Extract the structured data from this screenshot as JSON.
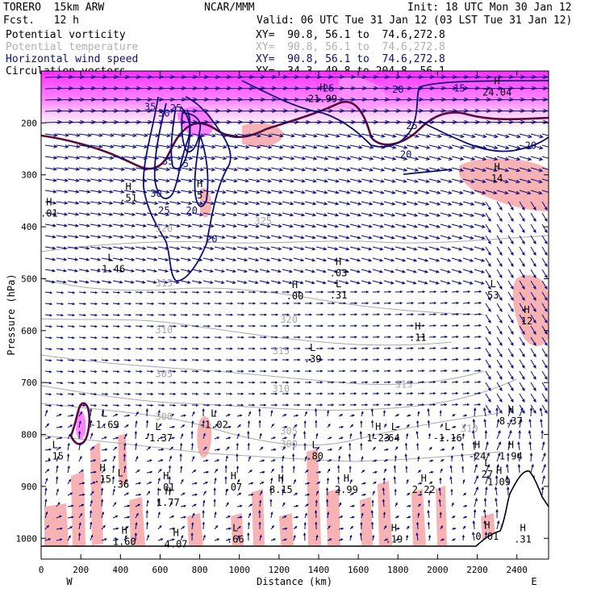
{
  "header": {
    "model": "TORERO  15km ARW",
    "center": "NCAR/MMM",
    "init": "Init: 18 UTC Mon 30 Jan 12",
    "fcst": "Fcst.   12 h",
    "valid": "Valid: 06 UTC Tue 31 Jan 12 (03 LST Tue 31 Jan 12)"
  },
  "legend": [
    {
      "label": "Potential vorticity",
      "xy": "XY=  90.8, 56.1 to  74.6,272.8",
      "color": "#000000"
    },
    {
      "label": "Potential temperature",
      "xy": "XY=  90.8, 56.1 to  74.6,272.8",
      "color": "#b0b0b0"
    },
    {
      "label": "Horizontal wind speed",
      "xy": "XY=  90.8, 56.1 to  74.6,272.8",
      "color": "#101070"
    },
    {
      "label": "Circulation vectors",
      "xy": "XY=  34.3, 49.8 to 204.8, 56.1",
      "color": "#000000"
    }
  ],
  "chart_data": {
    "type": "cross-section",
    "xlabel": "Distance (km)",
    "ylabel": "Pressure (hPa)",
    "x_ticks": [
      0,
      200,
      400,
      600,
      800,
      1000,
      1200,
      1400,
      1600,
      1800,
      2000,
      2200,
      2400
    ],
    "y_ticks": [
      200,
      300,
      400,
      500,
      600,
      700,
      800,
      900,
      1000
    ],
    "xlim": [
      0,
      2560
    ],
    "ylim": [
      1040,
      100
    ],
    "x_end_labels": {
      "left": "W",
      "right": "E"
    },
    "colors": {
      "wind_speed": "#101070",
      "theta": "#a8a8a8",
      "pv_fill_pink": "#f7b3b3",
      "pv_fill_magenta": "#ff33ff",
      "pv_line": "#5a0a3a",
      "vectors": "#0a0a80"
    },
    "theta_labels": [
      {
        "x": 620,
        "p": 410,
        "text": "320"
      },
      {
        "x": 1120,
        "p": 395,
        "text": "325"
      },
      {
        "x": 620,
        "p": 515,
        "text": "315"
      },
      {
        "x": 620,
        "p": 605,
        "text": "310"
      },
      {
        "x": 620,
        "p": 690,
        "text": "305"
      },
      {
        "x": 620,
        "p": 772,
        "text": "300"
      },
      {
        "x": 1250,
        "p": 585,
        "text": "320"
      },
      {
        "x": 1210,
        "p": 645,
        "text": "315"
      },
      {
        "x": 1210,
        "p": 718,
        "text": "310"
      },
      {
        "x": 1250,
        "p": 800,
        "text": "305"
      },
      {
        "x": 1250,
        "p": 825,
        "text": "300"
      },
      {
        "x": 1830,
        "p": 710,
        "text": "315"
      },
      {
        "x": 2160,
        "p": 795,
        "text": "310"
      }
    ],
    "wind_labels": [
      {
        "x": 1450,
        "p": 140,
        "text": "25"
      },
      {
        "x": 1800,
        "p": 142,
        "text": "20"
      },
      {
        "x": 2110,
        "p": 140,
        "text": "15"
      },
      {
        "x": 550,
        "p": 175,
        "text": "35"
      },
      {
        "x": 680,
        "p": 178,
        "text": "25"
      },
      {
        "x": 620,
        "p": 188,
        "text": "30"
      },
      {
        "x": 1870,
        "p": 212,
        "text": "25"
      },
      {
        "x": 1840,
        "p": 267,
        "text": "20"
      },
      {
        "x": 2470,
        "p": 250,
        "text": "20"
      },
      {
        "x": 640,
        "p": 280,
        "text": "35"
      },
      {
        "x": 730,
        "p": 285,
        "text": "5"
      },
      {
        "x": 580,
        "p": 342,
        "text": "30"
      },
      {
        "x": 620,
        "p": 375,
        "text": "25"
      },
      {
        "x": 760,
        "p": 375,
        "text": "20"
      },
      {
        "x": 860,
        "p": 430,
        "text": "20"
      }
    ],
    "extrema": [
      {
        "kind": "H",
        "x": 1420,
        "p": 152,
        "value": "21.99"
      },
      {
        "kind": "H",
        "x": 2300,
        "p": 140,
        "value": "24.04"
      },
      {
        "kind": "H",
        "x": 440,
        "p": 343,
        "value": ".51"
      },
      {
        "kind": "H",
        "x": 40,
        "p": 373,
        "value": ".01"
      },
      {
        "kind": "H",
        "x": 800,
        "p": 338,
        "value": "5"
      },
      {
        "kind": "H",
        "x": 2300,
        "p": 305,
        "value": "14"
      },
      {
        "kind": "L",
        "x": 350,
        "p": 480,
        "value": "-1.46"
      },
      {
        "kind": "H",
        "x": 1500,
        "p": 488,
        "value": ".03"
      },
      {
        "kind": "H",
        "x": 1280,
        "p": 532,
        "value": ".00"
      },
      {
        "kind": "L",
        "x": 1500,
        "p": 530,
        "value": ".31"
      },
      {
        "kind": "L",
        "x": 2280,
        "p": 530,
        "value": "53"
      },
      {
        "kind": "H",
        "x": 2450,
        "p": 580,
        "value": "12"
      },
      {
        "kind": "H",
        "x": 1900,
        "p": 612,
        "value": ".11"
      },
      {
        "kind": "L",
        "x": 1370,
        "p": 653,
        "value": ".39"
      },
      {
        "kind": "L",
        "x": 320,
        "p": 780,
        "value": "-1.69"
      },
      {
        "kind": "L",
        "x": 870,
        "p": 780,
        "value": "-1.02"
      },
      {
        "kind": "L",
        "x": 590,
        "p": 805,
        "value": "-1.37"
      },
      {
        "kind": "H",
        "x": 2370,
        "p": 773,
        "value": "8.37"
      },
      {
        "kind": "H",
        "x": 1700,
        "p": 805,
        "value": "1-23"
      },
      {
        "kind": "L",
        "x": 1780,
        "p": 805,
        "value": "64"
      },
      {
        "kind": "L",
        "x": 2050,
        "p": 805,
        "value": "-1.16"
      },
      {
        "kind": "L",
        "x": 70,
        "p": 840,
        "value": ".15"
      },
      {
        "kind": "L",
        "x": 1380,
        "p": 840,
        "value": ".80"
      },
      {
        "kind": "H",
        "x": 2200,
        "p": 840,
        "value": "-24"
      },
      {
        "kind": "H",
        "x": 2370,
        "p": 840,
        "value": "1.94"
      },
      {
        "kind": "H",
        "x": 310,
        "p": 885,
        "value": ".15"
      },
      {
        "kind": "L",
        "x": 400,
        "p": 895,
        "value": ".36"
      },
      {
        "kind": "H",
        "x": 630,
        "p": 900,
        "value": ".01"
      },
      {
        "kind": "H",
        "x": 970,
        "p": 900,
        "value": ".07"
      },
      {
        "kind": "H",
        "x": 1210,
        "p": 905,
        "value": "8.15"
      },
      {
        "kind": "H",
        "x": 1540,
        "p": 905,
        "value": "2.99"
      },
      {
        "kind": "H",
        "x": 1930,
        "p": 905,
        "value": "2.22"
      },
      {
        "kind": "H",
        "x": 2310,
        "p": 890,
        "value": "1.09"
      },
      {
        "kind": "L",
        "x": 2250,
        "p": 875,
        "value": "27"
      },
      {
        "kind": "H",
        "x": 640,
        "p": 930,
        "value": "1.77"
      },
      {
        "kind": "H",
        "x": 420,
        "p": 1005,
        "value": "1.60"
      },
      {
        "kind": "H",
        "x": 680,
        "p": 1010,
        "value": "4.07"
      },
      {
        "kind": "L",
        "x": 980,
        "p": 1000,
        "value": ".66"
      },
      {
        "kind": "H",
        "x": 1780,
        "p": 1000,
        "value": ".19"
      },
      {
        "kind": "H",
        "x": 2250,
        "p": 995,
        "value": "0.01"
      },
      {
        "kind": "H",
        "x": 2430,
        "p": 1000,
        "value": ".31"
      }
    ]
  }
}
